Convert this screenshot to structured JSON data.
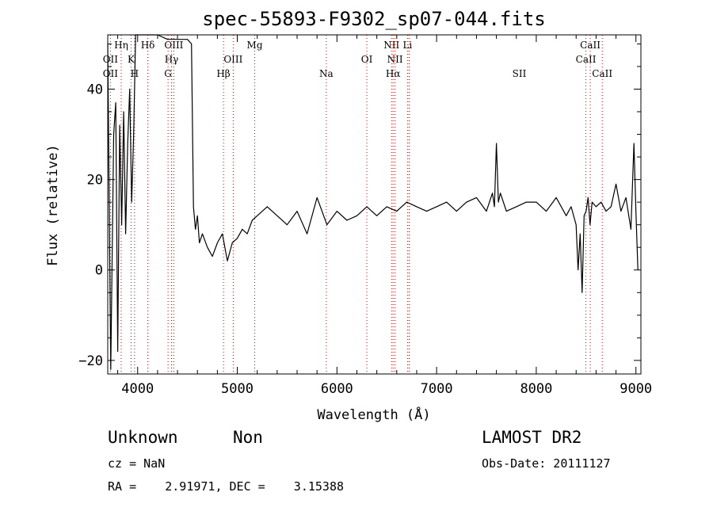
{
  "chart_data": {
    "type": "line",
    "title": "spec-55893-F9302_sp07-044.fits",
    "xlabel": "Wavelength (Å)",
    "ylabel": "Flux (relative)",
    "xlim": [
      3700,
      9050
    ],
    "ylim": [
      -23,
      52
    ],
    "x_ticks": [
      4000,
      5000,
      6000,
      7000,
      8000,
      9000
    ],
    "y_ticks": [
      -20,
      0,
      20,
      40
    ],
    "grid": false,
    "line_color": "#000000",
    "marker_color": "#cc0000",
    "series": [
      {
        "x": [
          3700,
          3730,
          3760,
          3780,
          3800,
          3820,
          3840,
          3860,
          3880,
          3900,
          3920,
          3940,
          3960,
          3980,
          4000,
          4050,
          4100,
          4200,
          4300,
          4400,
          4500,
          4540,
          4560,
          4580,
          4600,
          4620,
          4650,
          4700,
          4750,
          4800,
          4850,
          4900,
          4950,
          5000,
          5050,
          5100,
          5150,
          5200,
          5300,
          5400,
          5500,
          5600,
          5700,
          5800,
          5900,
          6000,
          6100,
          6200,
          6300,
          6400,
          6500,
          6600,
          6700,
          6800,
          6900,
          7000,
          7100,
          7200,
          7300,
          7400,
          7500,
          7560,
          7580,
          7600,
          7620,
          7640,
          7700,
          7800,
          7900,
          8000,
          8100,
          8200,
          8300,
          8350,
          8400,
          8420,
          8440,
          8460,
          8480,
          8500,
          8520,
          8540,
          8560,
          8600,
          8650,
          8700,
          8750,
          8800,
          8850,
          8900,
          8950,
          8980,
          9000,
          9020
        ],
        "y": [
          50,
          -22,
          30,
          37,
          -18,
          32,
          10,
          35,
          8,
          28,
          40,
          15,
          30,
          52,
          52,
          52,
          52,
          52,
          51,
          51,
          51,
          50,
          14,
          9,
          12,
          6,
          8,
          5,
          3,
          6,
          8,
          2,
          6,
          7,
          9,
          8,
          11,
          12,
          14,
          12,
          10,
          13,
          8,
          16,
          10,
          13,
          11,
          12,
          14,
          12,
          14,
          13,
          15,
          14,
          13,
          14,
          15,
          13,
          15,
          16,
          13,
          17,
          14,
          28,
          15,
          17,
          13,
          14,
          15,
          15,
          13,
          16,
          12,
          14,
          10,
          0,
          8,
          -5,
          12,
          13,
          16,
          10,
          15,
          14,
          15,
          13,
          14,
          19,
          13,
          16,
          9,
          28,
          13,
          0
        ]
      }
    ],
    "lines": [
      {
        "name": "OII",
        "x": 3727,
        "row": 1
      },
      {
        "name": "OII",
        "x": 3727,
        "row": 2
      },
      {
        "name": "Hη",
        "x": 3835,
        "row": 0
      },
      {
        "name": "K",
        "x": 3934,
        "row": 1
      },
      {
        "name": "H",
        "x": 3969,
        "row": 2
      },
      {
        "name": "Hδ",
        "x": 4102,
        "row": 0
      },
      {
        "name": "OIII",
        "x": 4363,
        "row": 0
      },
      {
        "name": "Hγ",
        "x": 4340,
        "row": 1
      },
      {
        "name": "G",
        "x": 4305,
        "row": 2
      },
      {
        "name": "Mg",
        "x": 5175,
        "row": 0
      },
      {
        "name": "OIII",
        "x": 4959,
        "row": 1
      },
      {
        "name": "Hβ",
        "x": 4861,
        "row": 2
      },
      {
        "name": "Na",
        "x": 5893,
        "row": 2
      },
      {
        "name": "OI",
        "x": 6300,
        "row": 1
      },
      {
        "name": "NII",
        "x": 6548,
        "row": 0
      },
      {
        "name": "Li",
        "x": 6708,
        "row": 0
      },
      {
        "name": "NII",
        "x": 6583,
        "row": 1
      },
      {
        "name": "Hα",
        "x": 6563,
        "row": 2
      },
      {
        "name": "SII",
        "x": 6725,
        "row": 2,
        "label_x": 7830
      },
      {
        "name": "CaII",
        "x": 8542,
        "row": 0
      },
      {
        "name": "CaII",
        "x": 8498,
        "row": 1
      },
      {
        "name": "CaII",
        "x": 8662,
        "row": 2
      }
    ]
  },
  "info": {
    "class_label": "Unknown",
    "subclass_label": "Non",
    "survey_label": "LAMOST DR2",
    "cz_text": "cz = NaN",
    "obs_date_text": "Obs-Date: 20111127",
    "radec_text": "RA =    2.91971, DEC =    3.15388"
  }
}
